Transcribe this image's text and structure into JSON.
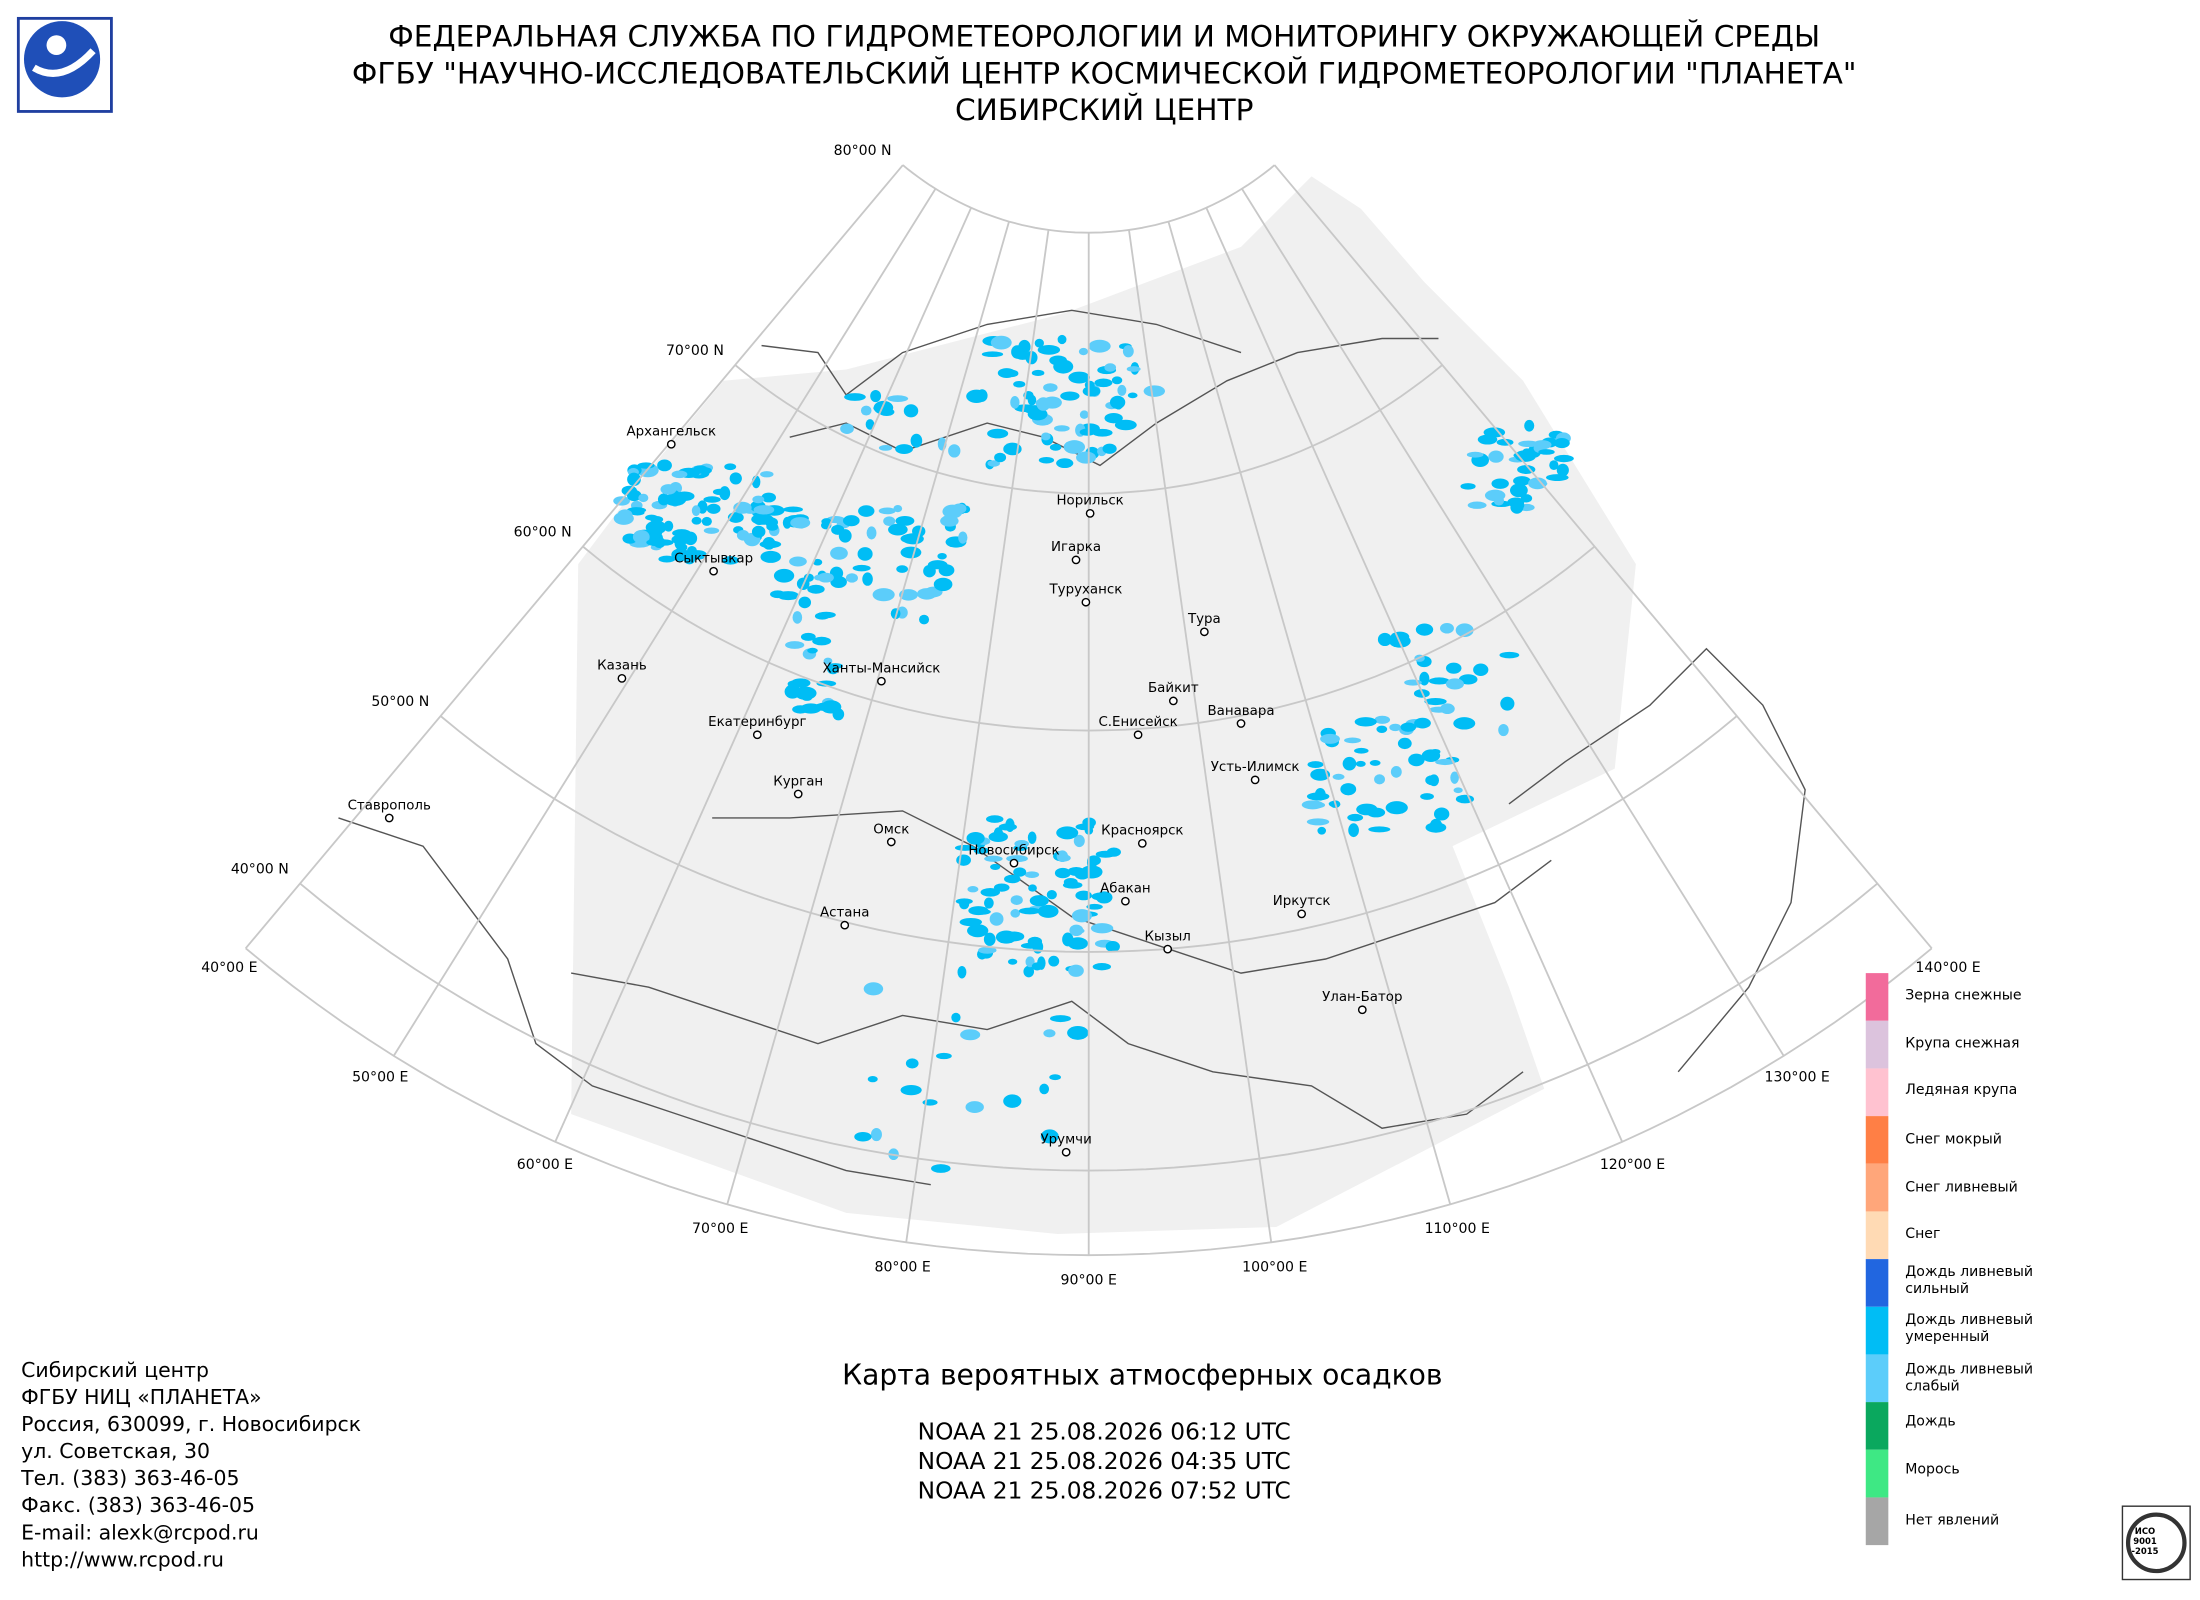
{
  "header": {
    "lines": [
      "ФЕДЕРАЛЬНАЯ СЛУЖБА ПО ГИДРОМЕТЕОРОЛОГИИ И МОНИТОРИНГУ ОКРУЖАЮЩЕЙ СРЕДЫ",
      "ФГБУ \"НАУЧНО-ИССЛЕДОВАТЕЛЬСКИЙ ЦЕНТР КОСМИЧЕСКОЙ ГИДРОМЕТЕОРОЛОГИИ \"ПЛАНЕТА\"",
      "СИБИРСКИЙ ЦЕНТР"
    ]
  },
  "grid": {
    "latitudes": [
      "80°00 N",
      "70°00 N",
      "60°00 N",
      "50°00 N",
      "40°00 N"
    ],
    "longitudes": [
      "40°00 E",
      "50°00 E",
      "60°00 E",
      "70°00 E",
      "80°00 E",
      "90°00 E",
      "100°00 E",
      "110°00 E",
      "120°00 E",
      "130°00 E",
      "140°00 E"
    ]
  },
  "cities": [
    "Архангельск",
    "Сыктывкар",
    "Казань",
    "Екатеринбург",
    "Курган",
    "Ставрополь",
    "Ханты-Мансийск",
    "Норильск",
    "Игарка",
    "Туруханск",
    "Тура",
    "Байкит",
    "С.Енисейск",
    "Ванавара",
    "Усть-Илимск",
    "Омск",
    "Новосибирск",
    "Красноярск",
    "Абакан",
    "Астана",
    "Кызыл",
    "Иркутск",
    "Улан-Батор",
    "Урумчи"
  ],
  "legend": {
    "items": [
      {
        "lines": [
          "Зерна снежные"
        ],
        "color": "#f26b9b"
      },
      {
        "lines": [
          "Крупа снежная"
        ],
        "color": "#dcc3dd"
      },
      {
        "lines": [
          "Ледяная крупа"
        ],
        "color": "#ffc2d0"
      },
      {
        "lines": [
          "Снег мокрый"
        ],
        "color": "#ff7f45"
      },
      {
        "lines": [
          "Снег ливневый"
        ],
        "color": "#ffa67a"
      },
      {
        "lines": [
          "Снег"
        ],
        "color": "#ffdab4"
      },
      {
        "lines": [
          "Дождь ливневый",
          "сильный"
        ],
        "color": "#2166e0"
      },
      {
        "lines": [
          "Дождь ливневый",
          "умеренный"
        ],
        "color": "#00bdf5"
      },
      {
        "lines": [
          "Дождь ливневый",
          "слабый"
        ],
        "color": "#5ccdfa"
      },
      {
        "lines": [
          "Дождь"
        ],
        "color": "#0aa85e"
      },
      {
        "lines": [
          "Морось"
        ],
        "color": "#3ee884"
      },
      {
        "lines": [
          "Нет явлений"
        ],
        "color": "#a6a6a6"
      }
    ]
  },
  "footer": {
    "address": [
      "Сибирский центр",
      "ФГБУ НИЦ «ПЛАНЕТА»",
      "Россия, 630099, г. Новосибирск",
      "ул. Советская, 30",
      "Тел. (383) 363-46-05",
      "Факс. (383) 363-46-05",
      "E-mail: alexk@rcpod.ru",
      "http://www.rcpod.ru"
    ]
  },
  "map_title": "Карта вероятных атмосферных осадков",
  "passes": [
    "NOAA 21 25.08.2026  06:12 UTC",
    "NOAA 21 25.08.2026  04:35 UTC",
    "NOAA 21 25.08.2026  07:52 UTC"
  ],
  "iso": {
    "lines": [
      "ИСО",
      "9001",
      "-2015"
    ]
  }
}
